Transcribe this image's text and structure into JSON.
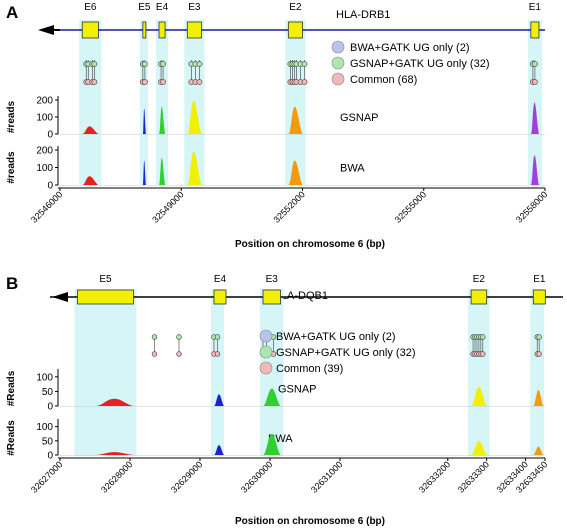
{
  "colors": {
    "exon_fill": "#f0f000",
    "highlight": "#d5f5f7",
    "gene_line": "#1a1aa0",
    "variant_blue": "#b8c4ee",
    "variant_green": "#aee6b0",
    "variant_pink": "#f2b8b8",
    "variant_line": "#555555"
  },
  "chart_data": [
    {
      "type": "area",
      "panel": "A",
      "gene": "HLA-DRB1",
      "strand_arrow": "left",
      "exons": [
        {
          "label": "E6",
          "start": 32546550,
          "end": 32546950
        },
        {
          "label": "E5",
          "start": 32548050,
          "end": 32548100
        },
        {
          "label": "E4",
          "start": 32548450,
          "end": 32548600
        },
        {
          "label": "E3",
          "start": 32549150,
          "end": 32549500
        },
        {
          "label": "E2",
          "start": 32551650,
          "end": 32552000
        },
        {
          "label": "E1",
          "start": 32557650,
          "end": 32557850
        }
      ],
      "xlim": [
        32546000,
        32558000
      ],
      "xticks": [
        "32546000",
        "32549000",
        "32552000",
        "32555000",
        "32558000"
      ],
      "xlabel": "Position on chromosome 6 (bp)",
      "legend": [
        {
          "label": "BWA+GATK UG only (2)",
          "color": "#b8c4ee"
        },
        {
          "label": "GSNAP+GATK UG only (32)",
          "color": "#aee6b0"
        },
        {
          "label": "Common (68)",
          "color": "#f2b8b8"
        }
      ],
      "variant_positions": [
        32546650,
        32546700,
        32546800,
        32546850,
        32548050,
        32548100,
        32548500,
        32548550,
        32549250,
        32549350,
        32549450,
        32551700,
        32551750,
        32551800,
        32551850,
        32551950,
        32552050,
        32557700,
        32557750
      ],
      "tracks": [
        {
          "name": "GSNAP",
          "ylabel": "#reads",
          "yticks": [
            "200",
            "100",
            "0"
          ],
          "ylim": [
            0,
            200
          ],
          "coverage": [
            {
              "start": 32546550,
              "end": 32546950,
              "peak": 45,
              "color": "#e82020"
            },
            {
              "start": 32548050,
              "end": 32548100,
              "peak": 150,
              "color": "#2020d0"
            },
            {
              "start": 32548450,
              "end": 32548600,
              "peak": 160,
              "color": "#30d030"
            },
            {
              "start": 32549150,
              "end": 32549500,
              "peak": 195,
              "color": "#f0f000"
            },
            {
              "start": 32551650,
              "end": 32552000,
              "peak": 160,
              "color": "#f59a10"
            },
            {
              "start": 32557650,
              "end": 32557850,
              "peak": 185,
              "color": "#a040e0"
            }
          ]
        },
        {
          "name": "BWA",
          "ylabel": "#reads",
          "yticks": [
            "200",
            "100",
            "0"
          ],
          "ylim": [
            0,
            200
          ],
          "coverage": [
            {
              "start": 32546550,
              "end": 32546950,
              "peak": 50,
              "color": "#e82020"
            },
            {
              "start": 32548050,
              "end": 32548100,
              "peak": 140,
              "color": "#2020d0"
            },
            {
              "start": 32548450,
              "end": 32548600,
              "peak": 155,
              "color": "#30d030"
            },
            {
              "start": 32549150,
              "end": 32549500,
              "peak": 190,
              "color": "#f0f000"
            },
            {
              "start": 32551650,
              "end": 32552000,
              "peak": 140,
              "color": "#f59a10"
            },
            {
              "start": 32557650,
              "end": 32557850,
              "peak": 170,
              "color": "#a040e0"
            }
          ]
        }
      ]
    },
    {
      "type": "area",
      "panel": "B",
      "gene": "HLA-DQB1",
      "strand_arrow": "left",
      "exons": [
        {
          "label": "E5",
          "start": 32627250,
          "end": 32628050
        },
        {
          "label": "E4",
          "start": 32629200,
          "end": 32629300
        },
        {
          "label": "E3",
          "start": 32629900,
          "end": 32630150
        },
        {
          "label": "E2",
          "start": 32633260,
          "end": 32633300
        },
        {
          "label": "E1",
          "start": 32633420,
          "end": 32633440
        }
      ],
      "axis_segments": [
        {
          "start": 32627000,
          "end": 32631000,
          "ticks": [
            "32627000",
            "32628000",
            "32629000",
            "32630000",
            "32631000"
          ]
        },
        {
          "start": 32633000,
          "end": 32633450,
          "ticks": [
            "32633200",
            "32633300",
            "32633400",
            "32633450"
          ]
        }
      ],
      "xlabel": "Position on chromosome 6 (bp)",
      "legend": [
        {
          "label": "BWA+GATK UG only (2)",
          "color": "#b8c4ee"
        },
        {
          "label": "GSNAP+GATK UG only (32)",
          "color": "#aee6b0"
        },
        {
          "label": "Common (39)",
          "color": "#f2b8b8"
        }
      ],
      "variant_positions": [
        32628350,
        32628700,
        32629200,
        32629250,
        32629900,
        32629950,
        32630050,
        32633265,
        32633270,
        32633275,
        32633280,
        32633285,
        32633290,
        32633430,
        32633435
      ],
      "tracks": [
        {
          "name": "GSNAP",
          "ylabel": "#Reads",
          "yticks": [
            "100",
            "50",
            "0"
          ],
          "ylim": [
            0,
            120
          ],
          "coverage": [
            {
              "start": 32627500,
              "end": 32628050,
              "peak": 25,
              "color": "#e82020"
            },
            {
              "start": 32629200,
              "end": 32629300,
              "peak": 40,
              "color": "#2020d0"
            },
            {
              "start": 32629900,
              "end": 32630150,
              "peak": 60,
              "color": "#30d030"
            },
            {
              "start": 32633260,
              "end": 32633300,
              "peak": 65,
              "color": "#f0f000"
            },
            {
              "start": 32633420,
              "end": 32633440,
              "peak": 55,
              "color": "#f59a10"
            }
          ]
        },
        {
          "name": "BWA",
          "ylabel": "#Reads",
          "yticks": [
            "100",
            "50",
            "0"
          ],
          "ylim": [
            0,
            120
          ],
          "coverage": [
            {
              "start": 32627500,
              "end": 32628050,
              "peak": 10,
              "color": "#e82020"
            },
            {
              "start": 32629200,
              "end": 32629300,
              "peak": 35,
              "color": "#2020d0"
            },
            {
              "start": 32629900,
              "end": 32630150,
              "peak": 75,
              "color": "#30d030"
            },
            {
              "start": 32633260,
              "end": 32633300,
              "peak": 50,
              "color": "#f0f000"
            },
            {
              "start": 32633420,
              "end": 32633440,
              "peak": 30,
              "color": "#f59a10"
            }
          ]
        }
      ]
    }
  ]
}
